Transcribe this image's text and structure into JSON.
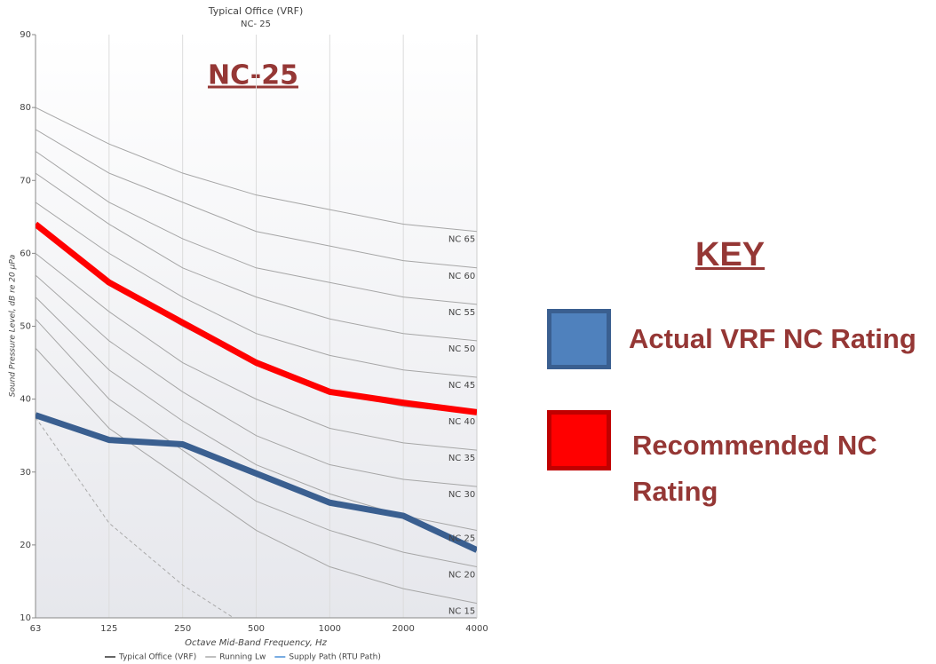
{
  "chart_data": {
    "type": "line",
    "title": "Typical Office (VRF)",
    "subtitle": "NC- 25",
    "annotation": "NC-25",
    "xlabel": "Octave Mid-Band Frequency, Hz",
    "ylabel": "Sound Pressure Level, dB re 20 µPa",
    "categories": [
      "63",
      "125",
      "250",
      "500",
      "1000",
      "2000",
      "4000"
    ],
    "ylim": [
      10,
      90
    ],
    "yticks": [
      10,
      20,
      30,
      40,
      50,
      60,
      70,
      80,
      90
    ],
    "grid": true,
    "curve_color": "#a6a6a6",
    "nc_curves": [
      {
        "name": "NC 65",
        "values": [
          80,
          75,
          71,
          68,
          66,
          64,
          63
        ]
      },
      {
        "name": "NC 60",
        "values": [
          77,
          71,
          67,
          63,
          61,
          59,
          58
        ]
      },
      {
        "name": "NC 55",
        "values": [
          74,
          67,
          62,
          58,
          56,
          54,
          53
        ]
      },
      {
        "name": "NC 50",
        "values": [
          71,
          64,
          58,
          54,
          51,
          49,
          48
        ]
      },
      {
        "name": "NC 45",
        "values": [
          67,
          60,
          54,
          49,
          46,
          44,
          43
        ]
      },
      {
        "name": "NC 40",
        "values": [
          64,
          56,
          50,
          45,
          41,
          39,
          38
        ]
      },
      {
        "name": "NC 35",
        "values": [
          60,
          52,
          45,
          40,
          36,
          34,
          33
        ]
      },
      {
        "name": "NC 30",
        "values": [
          57,
          48,
          41,
          35,
          31,
          29,
          28
        ]
      },
      {
        "name": "NC 25",
        "values": [
          54,
          44,
          37,
          31,
          27,
          24,
          22
        ]
      },
      {
        "name": "NC 20",
        "values": [
          51,
          40,
          33,
          26,
          22,
          19,
          17
        ]
      },
      {
        "name": "NC 15",
        "values": [
          47,
          36,
          29,
          22,
          17,
          14,
          12
        ]
      }
    ],
    "threshold": {
      "color": "#aaaaaa",
      "values": [
        37.5,
        23,
        14.5,
        8,
        null,
        null,
        null
      ]
    },
    "series": [
      {
        "name": "Recommended NC Rating",
        "color": "#ff0000",
        "border": "#c00000",
        "values": [
          64,
          56,
          50.5,
          45,
          41,
          39.5,
          38.2
        ]
      },
      {
        "name": "Actual VRF NC Rating",
        "color": "#3a5f90",
        "fill": "#4f81bd",
        "values": [
          37.8,
          34.4,
          33.8,
          29.8,
          25.8,
          24,
          19.3
        ]
      }
    ],
    "legend": [
      {
        "name": "Typical Office (VRF)",
        "color": "#333333"
      },
      {
        "name": "Running Lw",
        "color": "#aaaaaa"
      },
      {
        "name": "Supply Path (RTU Path)",
        "color": "#4a90d9"
      }
    ],
    "key_title": "KEY"
  }
}
